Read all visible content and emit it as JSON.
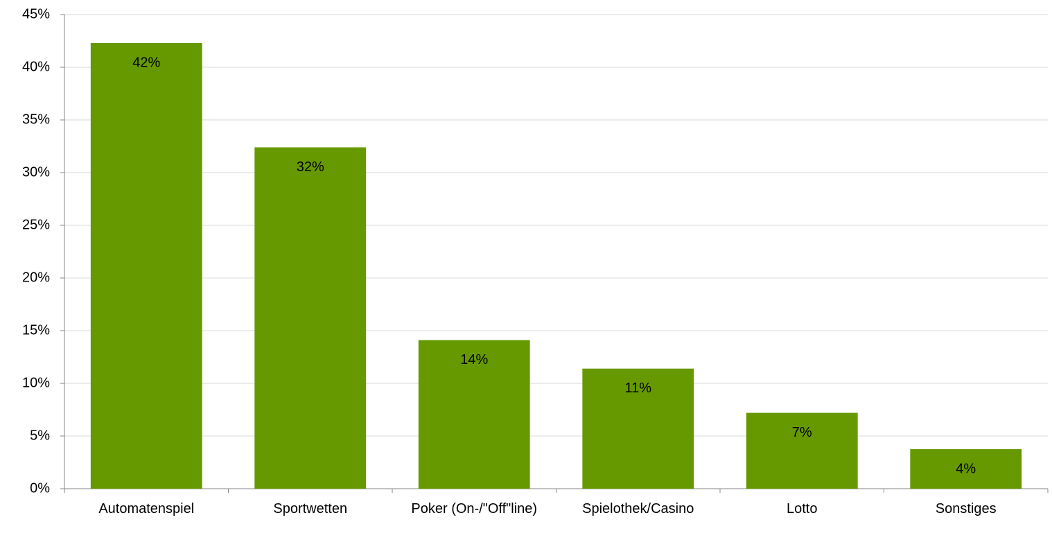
{
  "chart_data": {
    "type": "bar",
    "categories": [
      "Automatenspiel",
      "Sportwetten",
      "Poker (On-/\"Off\"line)",
      "Spielothek/Casino",
      "Lotto",
      "Sonstiges"
    ],
    "values": [
      42.3,
      32.4,
      14.1,
      11.4,
      7.2,
      3.75
    ],
    "value_labels": [
      "42%",
      "32%",
      "14%",
      "11%",
      "7%",
      "4%"
    ],
    "color": "#669900",
    "ylim": [
      0,
      45
    ],
    "yticks": [
      {
        "value": 0,
        "label": "0%"
      },
      {
        "value": 5,
        "label": "5%"
      },
      {
        "value": 10,
        "label": "10%"
      },
      {
        "value": 15,
        "label": "15%"
      },
      {
        "value": 20,
        "label": "20%"
      },
      {
        "value": 25,
        "label": "25%"
      },
      {
        "value": 30,
        "label": "30%"
      },
      {
        "value": 35,
        "label": "35%"
      },
      {
        "value": 40,
        "label": "40%"
      },
      {
        "value": 45,
        "label": "45%"
      }
    ],
    "grid": true
  }
}
